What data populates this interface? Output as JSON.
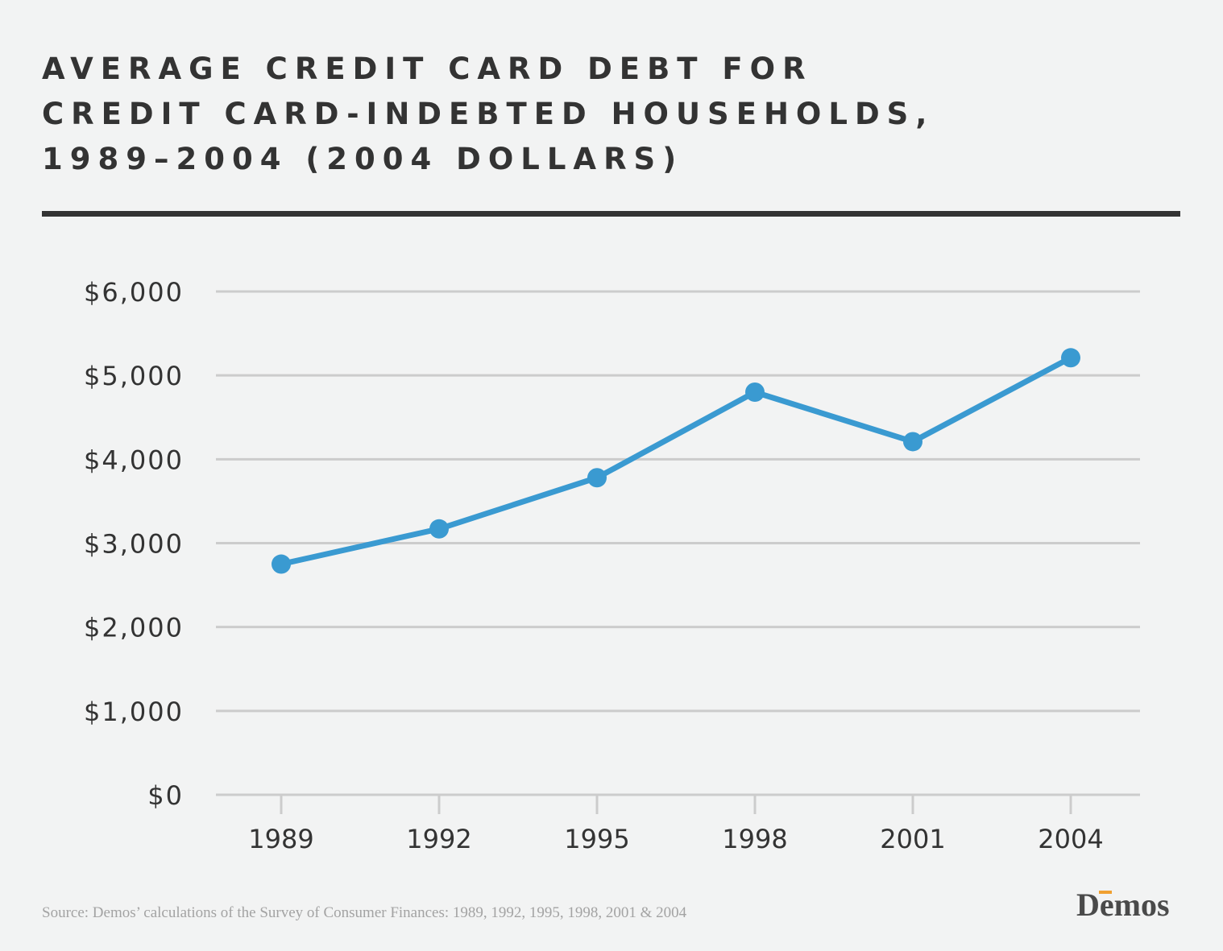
{
  "title_lines": [
    "AVERAGE CREDIT CARD DEBT FOR",
    "CREDIT CARD-INDEBTED HOUSEHOLDS,",
    "1989–2004 (2004 DOLLARS)"
  ],
  "source": "Source: Demos’ calculations of the Survey of Consumer Finances: 1989, 1992, 1995, 1998, 2001 & 2004",
  "logo": "Demos",
  "colors": {
    "line": "#3a9ad1",
    "grid": "#cccccc",
    "text": "#333333",
    "logo_accent": "#f0a030"
  },
  "chart_data": {
    "type": "line",
    "x": [
      "1989",
      "1992",
      "1995",
      "1998",
      "2001",
      "2004"
    ],
    "series": [
      {
        "values": [
          2750,
          3170,
          3780,
          4800,
          4210,
          5210
        ]
      }
    ],
    "yticks": [
      0,
      1000,
      2000,
      3000,
      4000,
      5000,
      6000
    ],
    "ytick_labels": [
      "$0",
      "$1,000",
      "$2,000",
      "$3,000",
      "$4,000",
      "$5,000",
      "$6,000"
    ],
    "ylim": [
      0,
      6000
    ],
    "grid": true,
    "legend": "none"
  }
}
